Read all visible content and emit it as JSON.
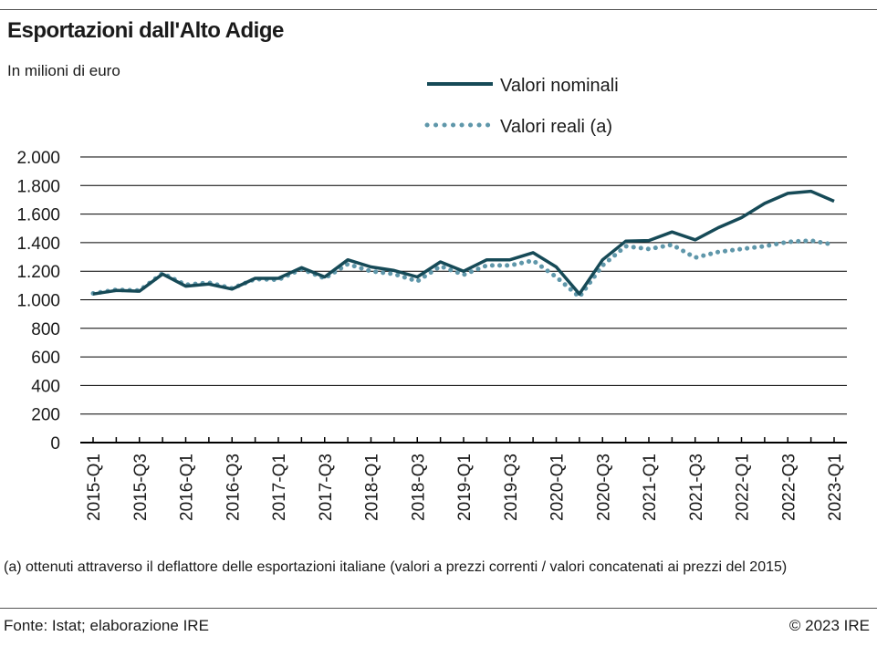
{
  "header": {
    "title": "Esportazioni dall'Alto Adige",
    "subtitle": "In milioni di euro"
  },
  "footer": {
    "note": "(a) ottenuti attraverso il deflattore delle esportazioni italiane (valori a prezzi correnti / valori concatenati ai prezzi del 2015)",
    "source": "Fonte: Istat; elaborazione IRE",
    "copyright": "© 2023 IRE"
  },
  "colors": {
    "nominal": "#164a57",
    "real": "#5f97aa",
    "grid": "#000000"
  },
  "chart_data": {
    "type": "line",
    "title": "Esportazioni dall'Alto Adige",
    "ylabel": "In milioni di euro",
    "xlabel": "",
    "ylim": [
      0,
      2000
    ],
    "yticks": [
      0,
      200,
      400,
      600,
      800,
      1000,
      1200,
      1400,
      1600,
      1800,
      2000
    ],
    "ytick_labels": [
      "0",
      "200",
      "400",
      "600",
      "800",
      "1.000",
      "1.200",
      "1.400",
      "1.600",
      "1.800",
      "2.000"
    ],
    "categories": [
      "2015-Q1",
      "2015-Q2",
      "2015-Q3",
      "2015-Q4",
      "2016-Q1",
      "2016-Q2",
      "2016-Q3",
      "2016-Q4",
      "2017-Q1",
      "2017-Q2",
      "2017-Q3",
      "2017-Q4",
      "2018-Q1",
      "2018-Q2",
      "2018-Q3",
      "2018-Q4",
      "2019-Q1",
      "2019-Q2",
      "2019-Q3",
      "2019-Q4",
      "2020-Q1",
      "2020-Q2",
      "2020-Q3",
      "2020-Q4",
      "2021-Q1",
      "2021-Q2",
      "2021-Q3",
      "2021-Q4",
      "2022-Q1",
      "2022-Q2",
      "2022-Q3",
      "2022-Q4",
      "2023-Q1"
    ],
    "tick_labels": [
      "2015-Q1",
      "2015-Q3",
      "2016-Q1",
      "2016-Q3",
      "2017-Q1",
      "2017-Q3",
      "2018-Q1",
      "2018-Q3",
      "2019-Q1",
      "2019-Q3",
      "2020-Q1",
      "2020-Q3",
      "2021-Q1",
      "2021-Q3",
      "2022-Q1",
      "2022-Q3",
      "2023-Q1"
    ],
    "legend_position": "top-right",
    "series": [
      {
        "name": "Valori nominali",
        "style": "solid",
        "values": [
          1040,
          1065,
          1060,
          1180,
          1095,
          1110,
          1075,
          1150,
          1150,
          1225,
          1160,
          1280,
          1230,
          1205,
          1160,
          1265,
          1200,
          1280,
          1280,
          1330,
          1230,
          1040,
          1280,
          1410,
          1415,
          1475,
          1420,
          1505,
          1575,
          1675,
          1745,
          1760,
          1690
        ]
      },
      {
        "name": "Valori reali (a)",
        "style": "dotted",
        "values": [
          1045,
          1070,
          1065,
          1185,
          1105,
          1120,
          1080,
          1145,
          1140,
          1215,
          1150,
          1250,
          1200,
          1180,
          1130,
          1235,
          1175,
          1240,
          1240,
          1275,
          1160,
          1020,
          1240,
          1375,
          1355,
          1385,
          1295,
          1335,
          1355,
          1375,
          1405,
          1415,
          1385
        ]
      }
    ]
  }
}
